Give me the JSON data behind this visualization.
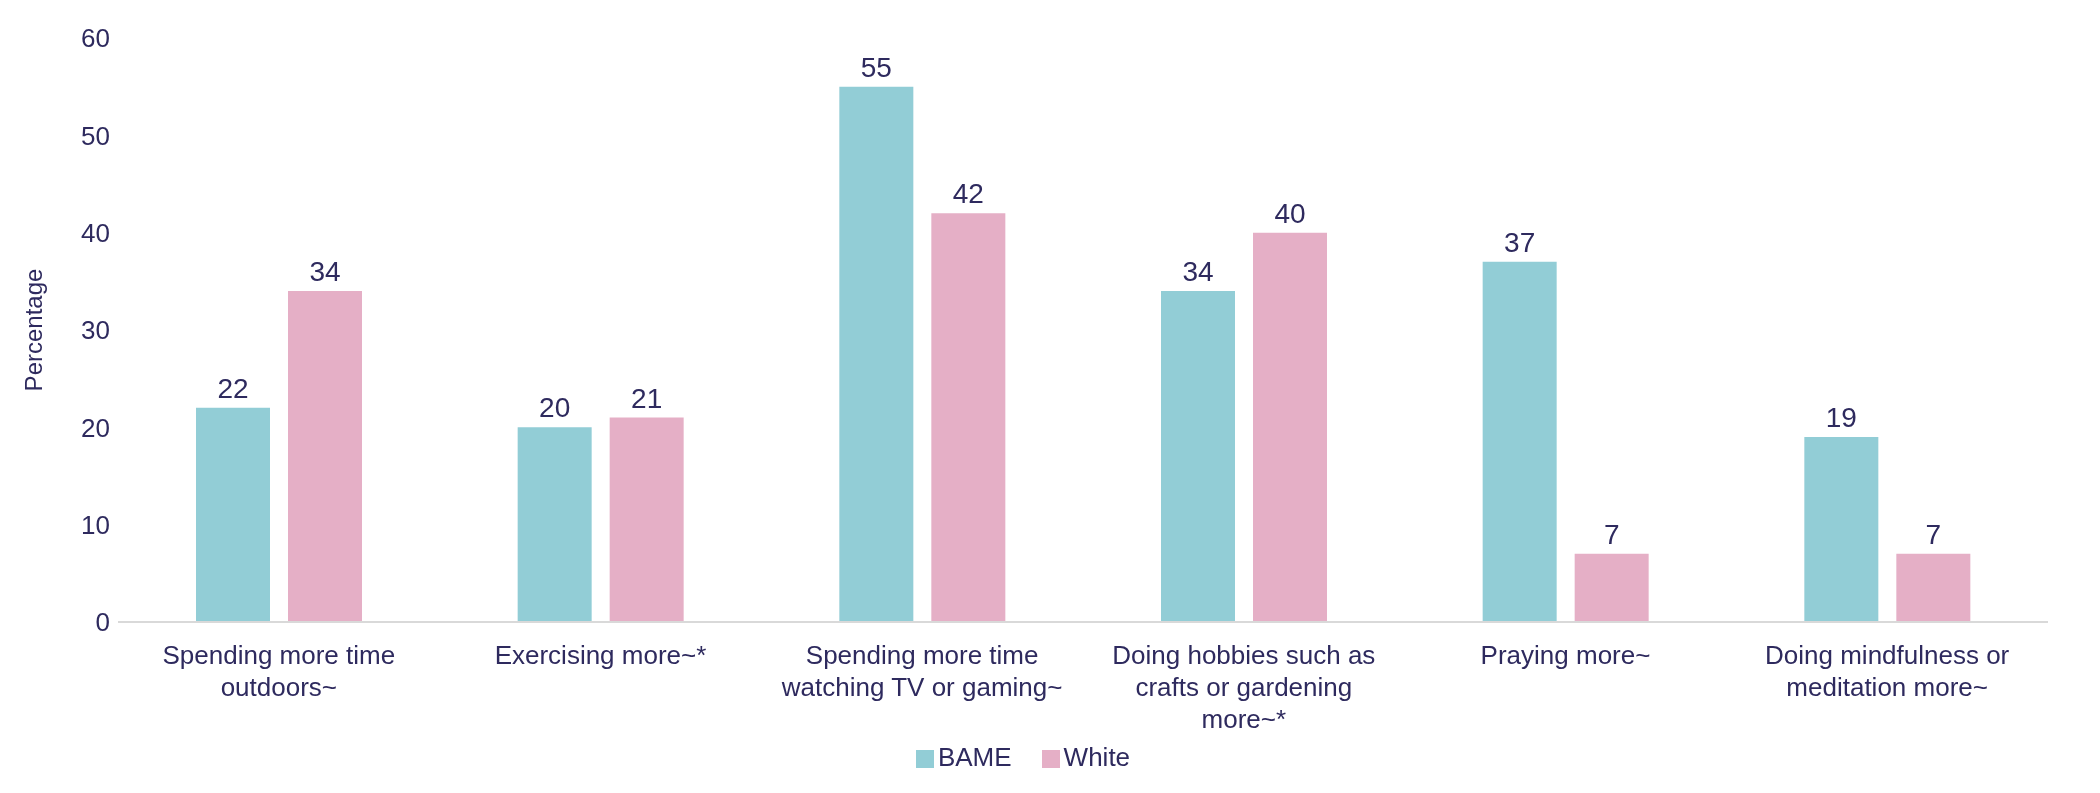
{
  "chart_data": {
    "type": "bar",
    "ylabel": "Percentage",
    "categories": [
      "Spending more time outdoors~",
      "Exercising more~*",
      "Spending more time watching TV or gaming~",
      "Doing hobbies such as crafts or gardening more~*",
      "Praying more~",
      "Doing mindfulness or meditation more~"
    ],
    "series": [
      {
        "name": "BAME",
        "color": "#92cdd6",
        "values": [
          22,
          20,
          55,
          34,
          37,
          19
        ]
      },
      {
        "name": "White",
        "color": "#e5afc6",
        "values": [
          34,
          21,
          42,
          40,
          7,
          7
        ]
      }
    ],
    "ylim": [
      0,
      60
    ],
    "yticks": [
      0,
      10,
      20,
      30,
      40,
      50,
      60
    ],
    "data_labels": true,
    "grid": false,
    "legend": "bottom"
  }
}
